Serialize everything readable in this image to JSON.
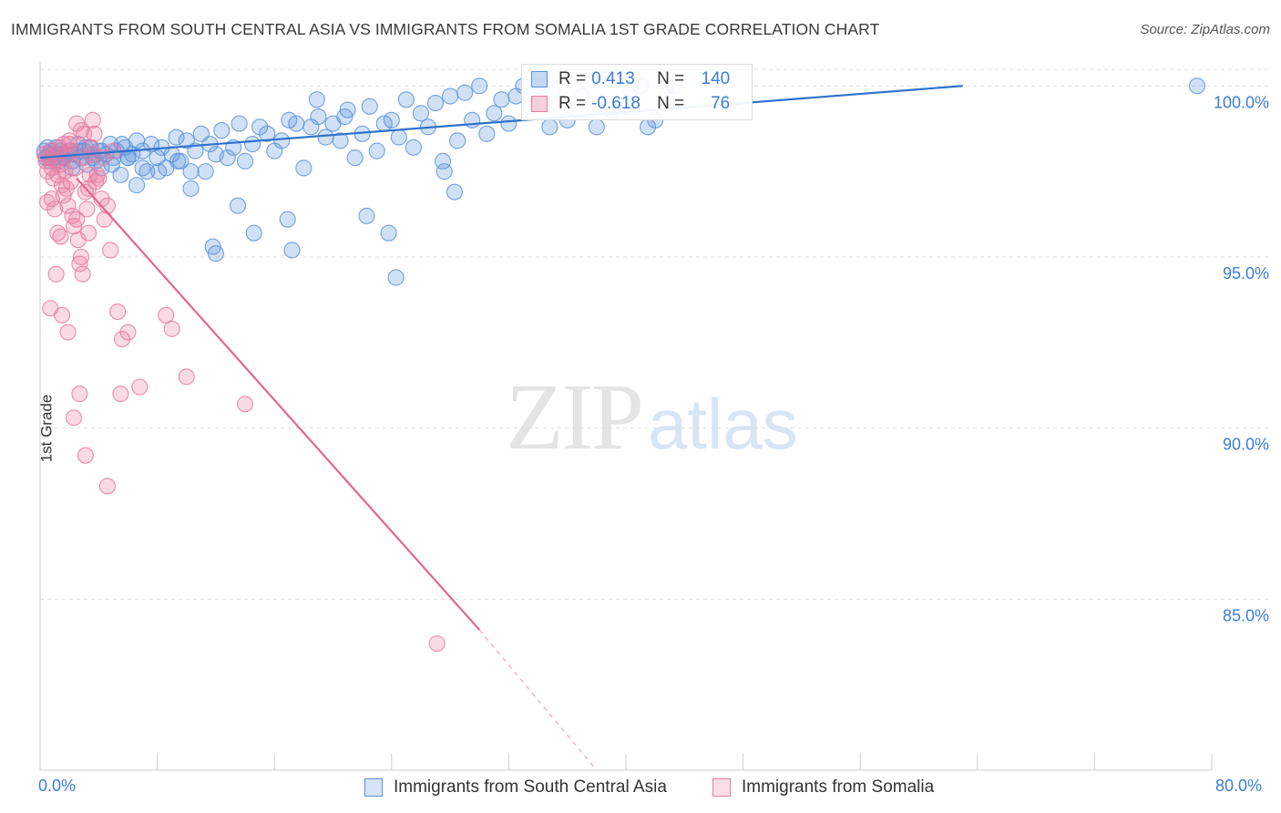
{
  "title": "IMMIGRANTS FROM SOUTH CENTRAL ASIA VS IMMIGRANTS FROM SOMALIA 1ST GRADE CORRELATION CHART",
  "source": "Source: ZipAtlas.com",
  "watermark": {
    "zip": "ZIP",
    "atlas": "atlas"
  },
  "legend": {
    "rows": [
      {
        "r_label": "R =",
        "r_value": " 0.413",
        "n_label": "N =",
        "n_value": "140",
        "color": "#5a93dc"
      },
      {
        "r_label": "R =",
        "r_value": "-0.618",
        "n_label": "N =",
        "n_value": "76",
        "color": "#e87aa0"
      }
    ]
  },
  "bottom_legend": [
    {
      "label": "Immigrants from South Central Asia",
      "color": "#5a93dc"
    },
    {
      "label": "Immigrants from Somalia",
      "color": "#e87aa0"
    }
  ],
  "chart_data": {
    "type": "scatter",
    "title": "IMMIGRANTS FROM SOUTH CENTRAL ASIA VS IMMIGRANTS FROM SOMALIA 1ST GRADE CORRELATION CHART",
    "xlabel": "",
    "ylabel": "1st Grade",
    "xlim": [
      0,
      80
    ],
    "ylim": [
      80.0,
      100.7
    ],
    "x_tick_labels": [
      "0.0%",
      "80.0%"
    ],
    "y_ticks": [
      85.0,
      90.0,
      95.0,
      100.0
    ],
    "y_tick_labels": [
      "85.0%",
      "90.0%",
      "95.0%",
      "100.0%"
    ],
    "grid": true,
    "series": [
      {
        "name": "Immigrants from South Central Asia",
        "color": "#5a93dc",
        "x": [
          0.3,
          0.4,
          0.5,
          0.6,
          0.7,
          0.8,
          0.9,
          1.0,
          1.1,
          1.2,
          1.3,
          1.4,
          1.5,
          1.6,
          1.8,
          2.0,
          2.2,
          2.4,
          2.6,
          2.8,
          3.0,
          3.2,
          3.4,
          3.6,
          3.8,
          4.0,
          4.2,
          4.5,
          4.8,
          5.0,
          5.2,
          5.5,
          5.8,
          6.0,
          6.3,
          6.6,
          7.0,
          7.3,
          7.6,
          8.0,
          8.3,
          8.6,
          9.0,
          9.3,
          9.6,
          10.0,
          10.3,
          10.6,
          11.0,
          11.3,
          11.6,
          12.0,
          12.4,
          12.8,
          13.2,
          13.6,
          14.0,
          14.5,
          15.0,
          15.5,
          16.0,
          16.5,
          17.0,
          17.5,
          18.0,
          18.5,
          19.0,
          19.5,
          20.0,
          20.5,
          21.0,
          21.5,
          22.0,
          22.5,
          23.0,
          23.5,
          24.0,
          24.5,
          25.0,
          25.5,
          26.0,
          26.5,
          27.0,
          27.5,
          28.0,
          28.5,
          29.0,
          29.5,
          30.0,
          30.5,
          31.0,
          31.5,
          32.0,
          32.5,
          33.0,
          33.5,
          34.0,
          35.0,
          36.0,
          37.0,
          38.0,
          39.0,
          40.0,
          41.0,
          41.5,
          42.0,
          42.8,
          43.3,
          16.9,
          17.2,
          13.5,
          14.6,
          11.8,
          12.0,
          10.3,
          9.4,
          8.1,
          7.0,
          6.6,
          6.0,
          5.6,
          4.9,
          4.2,
          3.6,
          3.1,
          2.7,
          2.2,
          1.6,
          1.1,
          0.6,
          79.0,
          22.3,
          24.3,
          27.6,
          28.3,
          23.8,
          20.8,
          18.9,
          34.8,
          40.3
        ],
        "y": [
          98.1,
          97.9,
          98.2,
          98.0,
          97.8,
          98.1,
          98.0,
          97.9,
          98.2,
          98.0,
          97.8,
          98.1,
          98.0,
          97.9,
          98.0,
          98.1,
          97.8,
          98.0,
          98.3,
          97.9,
          98.1,
          97.7,
          98.2,
          98.0,
          97.8,
          98.1,
          97.6,
          98.0,
          98.3,
          97.9,
          98.1,
          97.4,
          98.2,
          97.9,
          98.0,
          98.4,
          98.1,
          97.5,
          98.3,
          97.9,
          98.2,
          97.6,
          98.0,
          98.5,
          97.8,
          98.4,
          97.0,
          98.1,
          98.6,
          97.5,
          98.3,
          98.0,
          98.7,
          97.9,
          98.2,
          98.9,
          97.8,
          98.3,
          98.8,
          98.6,
          98.1,
          98.4,
          99.0,
          98.9,
          97.6,
          98.8,
          99.1,
          98.5,
          98.9,
          98.4,
          99.3,
          97.9,
          98.6,
          99.4,
          98.1,
          98.9,
          99.0,
          98.5,
          99.6,
          98.2,
          99.2,
          98.8,
          99.5,
          97.8,
          99.7,
          98.4,
          99.8,
          99.0,
          100.0,
          98.6,
          99.2,
          99.6,
          98.9,
          99.7,
          100.0,
          99.4,
          100.0,
          99.9,
          99.0,
          99.7,
          98.8,
          99.3,
          99.4,
          100.0,
          98.8,
          99.0,
          100.0,
          100.0,
          96.1,
          95.2,
          96.5,
          95.7,
          95.3,
          95.1,
          97.5,
          97.8,
          97.5,
          97.6,
          97.1,
          97.9,
          98.3,
          97.7,
          98.1,
          97.9,
          98.2,
          98.1,
          97.6,
          97.9,
          98.0,
          97.9,
          100.0,
          96.2,
          94.4,
          97.5,
          96.9,
          95.7,
          99.1,
          99.6,
          98.8,
          99.9
        ],
        "trend": {
          "x": [
            0,
            63.0
          ],
          "y": [
            97.9,
            100.0
          ]
        }
      },
      {
        "name": "Immigrants from Somalia",
        "color": "#e87aa0",
        "x": [
          0.3,
          0.4,
          0.5,
          0.6,
          0.7,
          0.8,
          0.9,
          1.0,
          1.1,
          1.2,
          1.3,
          1.4,
          1.5,
          1.6,
          1.7,
          1.8,
          1.9,
          2.0,
          2.1,
          2.2,
          2.3,
          2.4,
          2.5,
          2.6,
          2.7,
          2.8,
          2.9,
          3.0,
          3.1,
          3.2,
          3.3,
          3.4,
          3.5,
          3.6,
          3.7,
          3.8,
          4.0,
          4.2,
          4.4,
          4.6,
          4.8,
          5.0,
          5.3,
          5.6,
          6.0,
          0.5,
          0.8,
          1.0,
          1.2,
          1.4,
          1.6,
          1.8,
          2.0,
          2.2,
          2.5,
          2.8,
          3.0,
          3.3,
          3.6,
          3.9,
          4.3,
          0.7,
          1.1,
          1.5,
          1.9,
          2.3,
          2.7,
          3.1,
          4.6,
          5.5,
          6.8,
          8.6,
          9.0,
          10.0,
          14.0,
          27.1
        ],
        "y": [
          98.0,
          97.8,
          97.5,
          97.9,
          98.1,
          97.6,
          97.3,
          98.0,
          97.8,
          97.4,
          98.2,
          97.7,
          97.1,
          96.8,
          97.5,
          97.0,
          96.5,
          98.4,
          97.2,
          96.2,
          95.9,
          97.6,
          96.1,
          95.5,
          94.8,
          95.0,
          94.5,
          97.9,
          96.9,
          96.4,
          95.7,
          97.4,
          98.2,
          99.0,
          98.6,
          97.2,
          97.3,
          96.7,
          96.1,
          96.5,
          95.2,
          98.1,
          93.4,
          92.6,
          92.8,
          96.6,
          96.7,
          96.4,
          95.7,
          95.6,
          98.3,
          98.0,
          98.3,
          98.1,
          98.9,
          98.7,
          98.6,
          97.0,
          98.0,
          97.4,
          97.9,
          93.5,
          94.5,
          93.3,
          92.8,
          90.3,
          91.0,
          89.2,
          88.3,
          91.0,
          91.2,
          93.3,
          92.9,
          91.5,
          90.7,
          83.7
        ],
        "trend": {
          "x": [
            2.5,
            30.0
          ],
          "y": [
            97.3,
            84.1
          ]
        },
        "trend_extension": {
          "x": [
            30.0,
            38.0
          ],
          "y": [
            84.1,
            80.0
          ]
        }
      }
    ]
  }
}
